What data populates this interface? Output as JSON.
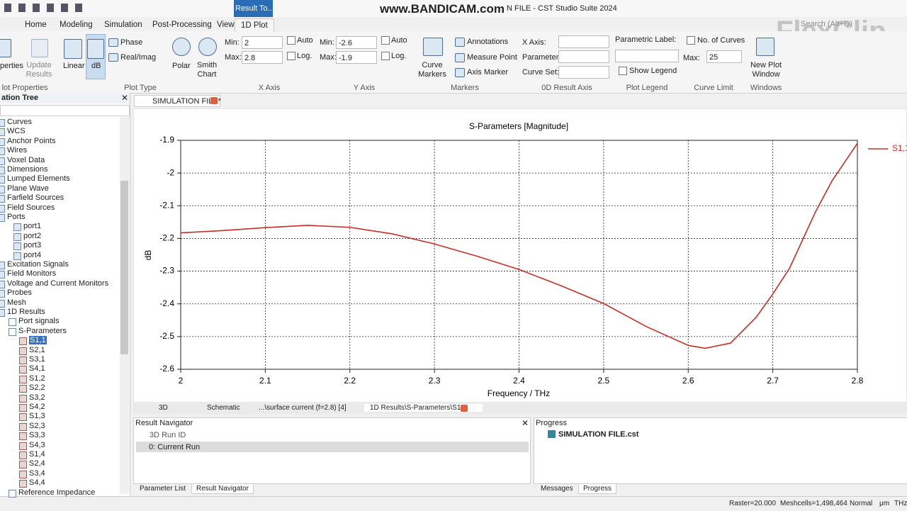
{
  "title_bar": {
    "active_tab": "Result To...",
    "watermark": "www.BANDICAM.com",
    "window_title": "N FILE - CST Studio Suite 2024",
    "search": "Search (Alt+Q)",
    "watermark2": "FlexClip"
  },
  "menu": [
    "Home",
    "Modeling",
    "Simulation",
    "Post-Processing",
    "View",
    "1D Plot"
  ],
  "ribbon": {
    "properties": "perties",
    "update_results": "Update Results",
    "group_plot_properties": "lot Properties",
    "linear": "Linear",
    "db": "dB",
    "phase": "Phase",
    "real_imag": "Real/Imag",
    "polar": "Polar",
    "smith_chart": "Smith Chart",
    "group_plot_type": "Plot Type",
    "x_min_label": "Min:",
    "x_min": "2",
    "x_max_label": "Max:",
    "x_max": "2.8",
    "x_auto": "Auto",
    "x_log": "Log.",
    "group_x_axis": "X Axis",
    "y_min_label": "Min:",
    "y_min": "-2.6",
    "y_max_label": "Max:",
    "y_max": "-1.9",
    "y_auto": "Auto",
    "y_log": "Log.",
    "group_y_axis": "Y Axis",
    "curve_markers": "Curve Markers",
    "annotations": "Annotations",
    "measure_point": "Measure Point",
    "axis_marker": "Axis Marker",
    "group_markers": "Markers",
    "od_x_axis": "X Axis:",
    "od_parameter": "Parameter:",
    "od_curve_set": "Curve Set:",
    "group_0d": "0D Result Axis",
    "parametric_label": "Parametric Label:",
    "show_legend": "Show Legend",
    "group_plot_legend": "Plot Legend",
    "no_of_curves": "No. of Curves",
    "max_label": "Max:",
    "max_curves": "25",
    "group_curve_limit": "Curve Limit",
    "new_plot_window": "New Plot Window",
    "group_windows": "Windows"
  },
  "tree": {
    "header": "ation Tree",
    "items": [
      "Curves",
      "WCS",
      "Anchor Points",
      "Wires",
      "Voxel Data",
      "Dimensions",
      "Lumped Elements",
      "Plane Wave",
      "Farfield Sources",
      "Field Sources",
      "Ports",
      "port1",
      "port2",
      "port3",
      "port4",
      "Excitation Signals",
      "Field Monitors",
      "Voltage and Current Monitors",
      "Probes",
      "Mesh",
      "1D Results",
      "Port signals",
      "S-Parameters",
      "S1,1",
      "S2,1",
      "S3,1",
      "S4,1",
      "S1,2",
      "S2,2",
      "S3,2",
      "S4,2",
      "S1,3",
      "S2,3",
      "S3,3",
      "S4,3",
      "S1,4",
      "S2,4",
      "S3,4",
      "S4,4",
      "Reference Impedance"
    ]
  },
  "document_tab": "SIMULATION FILE*",
  "chart_data": {
    "type": "line",
    "title": "S-Parameters [Magnitude]",
    "x_label": "Frequency / THz",
    "y_label": "dB",
    "x": [
      2.0,
      2.05,
      2.1,
      2.15,
      2.2,
      2.25,
      2.3,
      2.35,
      2.4,
      2.45,
      2.5,
      2.55,
      2.6,
      2.62,
      2.65,
      2.68,
      2.7,
      2.72,
      2.75,
      2.77,
      2.8
    ],
    "series": [
      {
        "name": "S1,1",
        "color": "#c62f28",
        "values": [
          -2.183,
          -2.176,
          -2.167,
          -2.16,
          -2.166,
          -2.186,
          -2.217,
          -2.254,
          -2.295,
          -2.345,
          -2.399,
          -2.469,
          -2.527,
          -2.536,
          -2.52,
          -2.442,
          -2.37,
          -2.29,
          -2.121,
          -2.024,
          -1.909
        ]
      }
    ],
    "xlim": [
      2,
      2.8
    ],
    "xticks": [
      2,
      2.1,
      2.2,
      2.3,
      2.4,
      2.5,
      2.6,
      2.7,
      2.8
    ],
    "ylim": [
      -2.6,
      -1.9
    ],
    "yticks": [
      -1.9,
      -2,
      -2.1,
      -2.2,
      -2.3,
      -2.4,
      -2.5,
      -2.6
    ],
    "grid": true
  },
  "view_tabs": [
    "3D",
    "Schematic",
    "...\\surface current (f=2.8) [4]",
    "1D Results\\S-Parameters\\S1,1"
  ],
  "result_navigator": {
    "title": "Result Navigator",
    "column": "3D Run ID",
    "row": "0: Current Run"
  },
  "progress": {
    "title": "Progress",
    "item": "SIMULATION FILE.cst"
  },
  "bottom_tabs_left": [
    "Parameter List",
    "Result Navigator"
  ],
  "bottom_tabs_right": [
    "Messages",
    "Progress"
  ],
  "status": [
    "Raster=20.000",
    "Meshcells=1,498,464",
    "Normal",
    "μm",
    "THz"
  ]
}
